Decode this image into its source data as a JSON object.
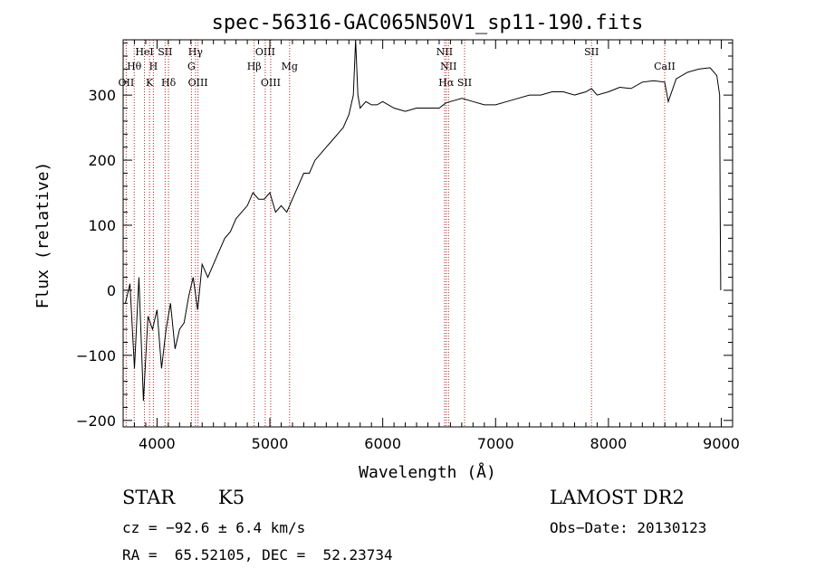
{
  "chart_data": {
    "type": "line",
    "title": "spec-56316-GAC065N50V1_sp11-190.fits",
    "xlabel": "Wavelength (Å)",
    "ylabel": "Flux (relative)",
    "xlim": [
      3700,
      9100
    ],
    "ylim": [
      -210,
      385
    ],
    "x_ticks": [
      4000,
      5000,
      6000,
      7000,
      8000,
      9000
    ],
    "y_ticks": [
      -200,
      -100,
      0,
      100,
      200,
      300
    ],
    "line_color": "#000000",
    "marker_color": "#b22222",
    "spectrum": {
      "x": [
        3720,
        3760,
        3800,
        3840,
        3880,
        3920,
        3960,
        4000,
        4040,
        4080,
        4120,
        4160,
        4200,
        4240,
        4280,
        4320,
        4360,
        4400,
        4450,
        4500,
        4550,
        4600,
        4650,
        4700,
        4750,
        4800,
        4850,
        4900,
        4950,
        5000,
        5050,
        5100,
        5150,
        5200,
        5250,
        5300,
        5350,
        5400,
        5450,
        5500,
        5550,
        5600,
        5650,
        5700,
        5740,
        5760,
        5780,
        5800,
        5850,
        5900,
        5950,
        6000,
        6100,
        6200,
        6300,
        6400,
        6500,
        6560,
        6600,
        6700,
        6800,
        6900,
        7000,
        7100,
        7200,
        7300,
        7400,
        7500,
        7600,
        7700,
        7800,
        7850,
        7900,
        8000,
        8100,
        8200,
        8300,
        8400,
        8498,
        8530,
        8600,
        8700,
        8800,
        8900,
        8960,
        8985,
        8990,
        8995
      ],
      "y": [
        -20,
        10,
        -120,
        20,
        -170,
        -40,
        -60,
        -30,
        -120,
        -60,
        -20,
        -90,
        -60,
        -50,
        -10,
        20,
        -30,
        40,
        20,
        40,
        60,
        80,
        90,
        110,
        120,
        130,
        150,
        140,
        140,
        150,
        120,
        130,
        120,
        140,
        160,
        180,
        180,
        200,
        210,
        220,
        230,
        240,
        250,
        270,
        300,
        385,
        300,
        280,
        290,
        285,
        285,
        290,
        280,
        275,
        280,
        280,
        280,
        288,
        290,
        295,
        290,
        285,
        285,
        290,
        295,
        300,
        300,
        305,
        305,
        300,
        305,
        310,
        300,
        305,
        312,
        310,
        320,
        322,
        320,
        290,
        325,
        335,
        340,
        342,
        330,
        300,
        120,
        0
      ]
    },
    "lines": [
      {
        "label": "OII",
        "x": 3727,
        "row": 3
      },
      {
        "label": "Hθ",
        "x": 3798,
        "row": 2
      },
      {
        "label": "HeI",
        "x": 3889,
        "row": 1
      },
      {
        "label": "K",
        "x": 3934,
        "row": 3
      },
      {
        "label": "H",
        "x": 3968,
        "row": 2
      },
      {
        "label": "SII",
        "x": 4072,
        "row": 1
      },
      {
        "label": "Hδ",
        "x": 4102,
        "row": 3
      },
      {
        "label": "Hγ",
        "x": 4341,
        "row": 1
      },
      {
        "label": "G",
        "x": 4305,
        "row": 2
      },
      {
        "label": "OIII",
        "x": 4363,
        "row": 3
      },
      {
        "label": "Hβ",
        "x": 4861,
        "row": 2
      },
      {
        "label": "OIII",
        "x": 4959,
        "row": 1
      },
      {
        "label": "OIII",
        "x": 5007,
        "row": 3
      },
      {
        "label": "Mg",
        "x": 5175,
        "row": 2
      },
      {
        "label": "NII",
        "x": 6548,
        "row": 1
      },
      {
        "label": "Hα",
        "x": 6563,
        "row": 3
      },
      {
        "label": "NII",
        "x": 6583,
        "row": 2
      },
      {
        "label": "SII",
        "x": 6725,
        "row": 3
      },
      {
        "label": "SII",
        "x": 7850,
        "row": 1
      },
      {
        "label": "CaII",
        "x": 8498,
        "row": 2
      }
    ]
  },
  "info": {
    "class": "STAR",
    "subclass": "K5",
    "survey": "LAMOST DR2",
    "cz": "cz = −92.6 ± 6.4 km/s",
    "obs_date": "Obs−Date: 20130123",
    "coords": "RA =  65.52105, DEC =  52.23734"
  }
}
